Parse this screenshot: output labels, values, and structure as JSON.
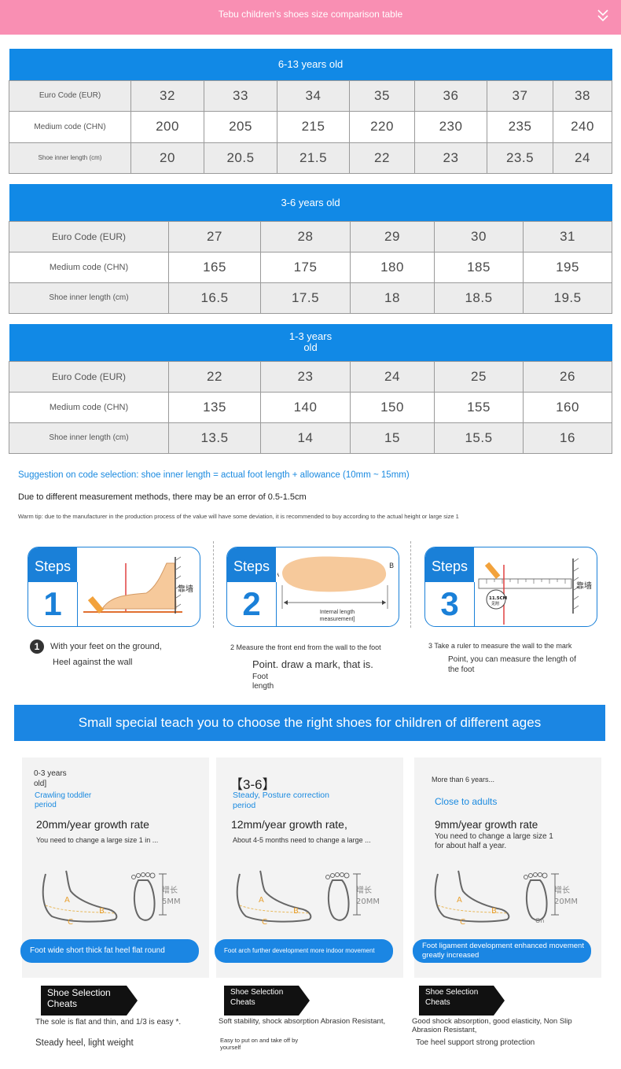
{
  "header": {
    "title": "Tebu children's shoes size comparison table"
  },
  "tables": [
    {
      "title": "6-13 years old",
      "rows": [
        {
          "label": "Euro Code (EUR)",
          "values": [
            "32",
            "33",
            "34",
            "35",
            "36",
            "37",
            "38"
          ]
        },
        {
          "label": "Medium code (CHN)",
          "values": [
            "200",
            "205",
            "215",
            "220",
            "230",
            "235",
            "240"
          ]
        },
        {
          "label": "Shoe inner length (cm)",
          "values": [
            "20",
            "20.5",
            "21.5",
            "22",
            "23",
            "23.5",
            "24"
          ]
        }
      ]
    },
    {
      "title": "3-6 years old",
      "rows": [
        {
          "label": "Euro Code (EUR)",
          "values": [
            "27",
            "28",
            "29",
            "30",
            "31"
          ]
        },
        {
          "label": "Medium code (CHN)",
          "values": [
            "165",
            "175",
            "180",
            "185",
            "195"
          ]
        },
        {
          "label": "Shoe inner length (cm)",
          "values": [
            "16.5",
            "17.5",
            "18",
            "18.5",
            "19.5"
          ]
        }
      ]
    },
    {
      "title_line1": "1-3 years",
      "title_line2": "old",
      "rows": [
        {
          "label": "Euro Code (EUR)",
          "values": [
            "22",
            "23",
            "24",
            "25",
            "26"
          ]
        },
        {
          "label": "Medium code (CHN)",
          "values": [
            "135",
            "140",
            "150",
            "155",
            "160"
          ]
        },
        {
          "label": "Shoe inner length (cm)",
          "values": [
            "13.5",
            "14",
            "15",
            "15.5",
            "16"
          ]
        }
      ]
    }
  ],
  "notes": {
    "suggestion": "Suggestion on code selection: shoe inner length = actual foot length + allowance (10mm ~ 15mm)",
    "error": "Due to different measurement methods, there may be an error of 0.5-1.5cm",
    "warm_tip": "Warm tip: due to the manufacturer in the production process of the value will have some deviation, it is recommended to buy according to the actual height or large size 1"
  },
  "steps": [
    {
      "label": "Steps",
      "number": "1",
      "wall": "靠墙",
      "text1": "With your feet on the ground,",
      "text2": "Heel against the wall",
      "bullet": "1"
    },
    {
      "label": "Steps",
      "number": "2",
      "mark_a": "A",
      "mark_b": "B",
      "caption": "Internal length measurement]",
      "text1": "2 Measure the front end from the wall to the foot",
      "text2": "Point. draw a mark, that is.",
      "text3": "Foot",
      "text4": "length"
    },
    {
      "label": "Steps",
      "number": "3",
      "wall": "靠墙",
      "ruler_mark": "11.5CM",
      "ruler_sub": "见附",
      "text1": "3 Take a ruler to measure the wall to the mark",
      "text2": "Point, you can measure the length of",
      "text3": "the foot"
    }
  ],
  "banner": "Small special teach you to choose the right shoes for children of different ages",
  "age_cards": [
    {
      "age_line1": "0-3 years",
      "age_line2": "old]",
      "period_line1": "Crawling toddler",
      "period_line2": "period",
      "rate": "20mm/year growth rate",
      "desc": "You need to change a large size 1 in ...",
      "growth1": "增长",
      "growth2": "5MM",
      "pill": "Foot wide short thick fat heel flat round",
      "cheat1": "Shoe Selection",
      "cheat2": "Cheats",
      "tip1": "The sole is flat and thin, and 1/3 is easy *.",
      "tip2": "Steady heel, light weight"
    },
    {
      "age_line1": "【3-6】",
      "period_line1": "Steady, Posture correction",
      "period_line2": "period",
      "rate": "12mm/year growth rate,",
      "desc": "About 4-5 months need to change a large ...",
      "growth1": "增长",
      "growth2": "20MM",
      "pill": "Foot arch further development more indoor movement",
      "cheat1": "Shoe Selection",
      "cheat2": "Cheats",
      "tip1": "Soft stability, shock absorption Abrasion Resistant,",
      "tip2": "Easy to put on and take off by yourself"
    },
    {
      "age_line1": "More than 6 years...",
      "period_line1": "Close to adults",
      "rate": "9mm/year growth rate",
      "desc1": "You need to change a large size 1",
      "desc2": "for about half a year.",
      "growth1": "增长",
      "growth2": "20MM",
      "extra": "On",
      "pill": "Foot ligament development enhanced movement greatly increased",
      "cheat1": "Shoe Selection",
      "cheat2": "Cheats",
      "tip1": "Good shock absorption, good elasticity, Non Slip Abrasion Resistant,",
      "tip2": "Toe heel support strong protection"
    }
  ],
  "foot_marks": {
    "a": "A",
    "b": "B",
    "c": "C"
  },
  "colors": {
    "header_pink": "#f98fb3",
    "accent_blue": "#1b86e3"
  }
}
